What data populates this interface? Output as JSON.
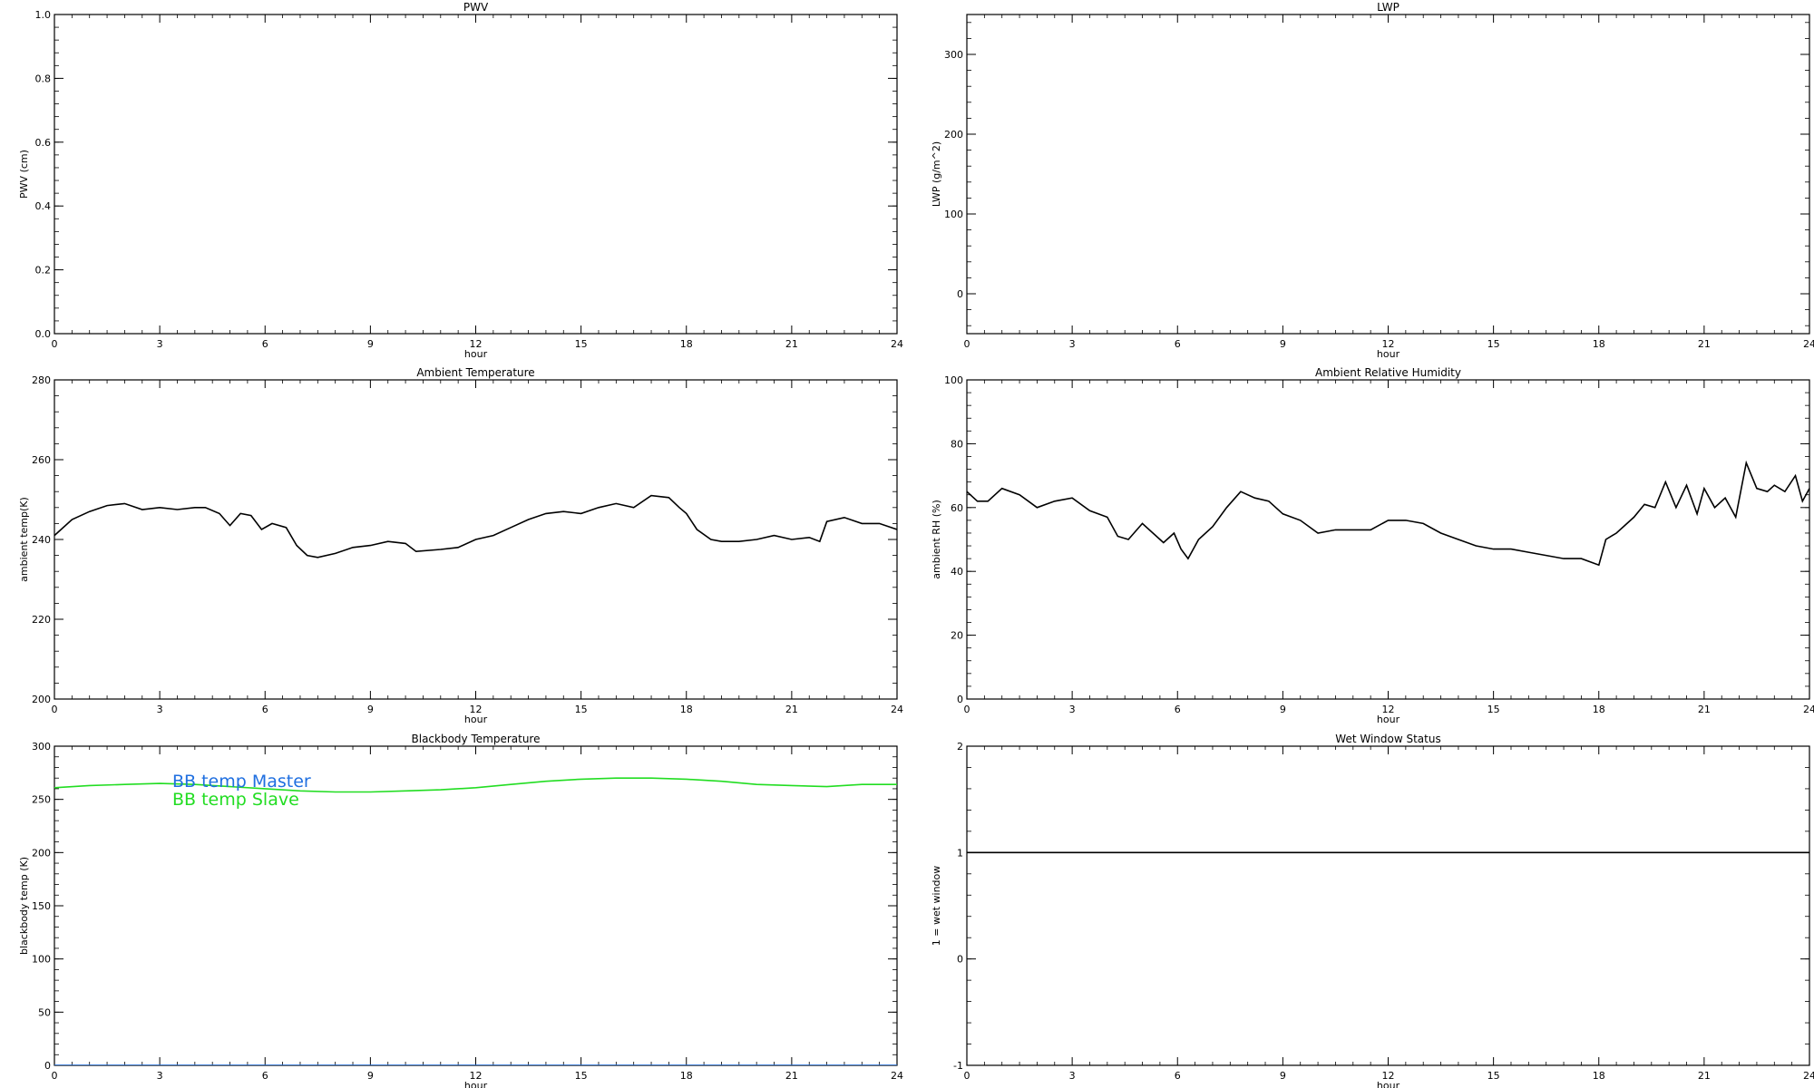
{
  "chart_data": [
    {
      "type": "line",
      "title": "PWV",
      "xlabel": "hour",
      "ylabel": "PWV (cm)",
      "xlim": [
        0,
        24
      ],
      "ylim": [
        0,
        1.0
      ],
      "xticks": [
        0,
        3,
        6,
        9,
        12,
        15,
        18,
        21,
        24
      ],
      "xtick_labels": [
        "0",
        "3",
        "6",
        "9",
        "12",
        "15",
        "18",
        "21",
        "24"
      ],
      "yticks": [
        0,
        0.2,
        0.4,
        0.6,
        0.8,
        1.0
      ],
      "ytick_labels": [
        "0.0",
        "0.2",
        "0.4",
        "0.6",
        "0.8",
        "1.0"
      ],
      "grid": false,
      "series": []
    },
    {
      "type": "line",
      "title": "LWP",
      "xlabel": "hour",
      "ylabel": "LWP (g/m^2)",
      "xlim": [
        0,
        24
      ],
      "ylim": [
        -50,
        350
      ],
      "xticks": [
        0,
        3,
        6,
        9,
        12,
        15,
        18,
        21,
        24
      ],
      "xtick_labels": [
        "0",
        "3",
        "6",
        "9",
        "12",
        "15",
        "18",
        "21",
        "24"
      ],
      "yticks": [
        0,
        100,
        200,
        300
      ],
      "ytick_labels": [
        "0",
        "100",
        "200",
        "300"
      ],
      "grid": false,
      "series": []
    },
    {
      "type": "line",
      "title": "Ambient Temperature",
      "xlabel": "hour",
      "ylabel": "ambient temp(K)",
      "xlim": [
        0,
        24
      ],
      "ylim": [
        200,
        280
      ],
      "xticks": [
        0,
        3,
        6,
        9,
        12,
        15,
        18,
        21,
        24
      ],
      "xtick_labels": [
        "0",
        "3",
        "6",
        "9",
        "12",
        "15",
        "18",
        "21",
        "24"
      ],
      "yticks": [
        200,
        220,
        240,
        260,
        280
      ],
      "ytick_labels": [
        "200",
        "220",
        "240",
        "260",
        "280"
      ],
      "grid": false,
      "series": [
        {
          "color": "#000000",
          "x": [
            0,
            0.5,
            1,
            1.5,
            2,
            2.5,
            3,
            3.5,
            4,
            4.3,
            4.7,
            5,
            5.3,
            5.6,
            5.9,
            6.2,
            6.6,
            6.9,
            7.2,
            7.5,
            8,
            8.5,
            9,
            9.5,
            10,
            10.3,
            11,
            11.5,
            12,
            12.5,
            13,
            13.5,
            14,
            14.5,
            15,
            15.5,
            16,
            16.5,
            17,
            17.5,
            17.8,
            18,
            18.3,
            18.7,
            19,
            19.5,
            20,
            20.5,
            21,
            21.5,
            21.8,
            22,
            22.5,
            23,
            23.5,
            24
          ],
          "values": [
            241,
            245,
            247,
            248.5,
            249,
            247.5,
            248,
            247.5,
            248,
            248,
            246.5,
            243.5,
            246.5,
            246,
            242.5,
            244,
            243,
            238.5,
            236,
            235.5,
            236.5,
            238,
            238.5,
            239.5,
            239,
            237,
            237.5,
            238,
            240,
            241,
            243,
            245,
            246.5,
            247,
            246.5,
            248,
            249,
            248,
            251,
            250.5,
            248,
            246.5,
            242.5,
            240,
            239.5,
            239.5,
            240,
            241,
            240,
            240.5,
            239.5,
            244.5,
            245.5,
            244,
            244,
            242.5
          ]
        }
      ]
    },
    {
      "type": "line",
      "title": "Ambient Relative Humidity",
      "xlabel": "hour",
      "ylabel": "ambient RH (%)",
      "xlim": [
        0,
        24
      ],
      "ylim": [
        0,
        100
      ],
      "xticks": [
        0,
        3,
        6,
        9,
        12,
        15,
        18,
        21,
        24
      ],
      "xtick_labels": [
        "0",
        "3",
        "6",
        "9",
        "12",
        "15",
        "18",
        "21",
        "24"
      ],
      "yticks": [
        0,
        20,
        40,
        60,
        80,
        100
      ],
      "ytick_labels": [
        "0",
        "20",
        "40",
        "60",
        "80",
        "100"
      ],
      "grid": false,
      "series": [
        {
          "color": "#000000",
          "x": [
            0,
            0.3,
            0.6,
            1,
            1.5,
            2,
            2.5,
            3,
            3.5,
            4,
            4.3,
            4.6,
            5,
            5.3,
            5.6,
            5.9,
            6.1,
            6.3,
            6.6,
            7,
            7.4,
            7.8,
            8.2,
            8.6,
            9,
            9.5,
            10,
            10.5,
            11,
            11.5,
            12,
            12.5,
            13,
            13.5,
            14,
            14.5,
            15,
            15.5,
            16,
            16.5,
            17,
            17.5,
            18,
            18.2,
            18.5,
            19,
            19.3,
            19.6,
            19.9,
            20.2,
            20.5,
            20.8,
            21,
            21.3,
            21.6,
            21.9,
            22.2,
            22.5,
            22.8,
            23,
            23.3,
            23.6,
            23.8,
            24
          ],
          "values": [
            65,
            62,
            62,
            66,
            64,
            60,
            62,
            63,
            59,
            57,
            51,
            50,
            55,
            52,
            49,
            52,
            47,
            44,
            50,
            54,
            60,
            65,
            63,
            62,
            58,
            56,
            52,
            53,
            53,
            53,
            56,
            56,
            55,
            52,
            50,
            48,
            47,
            47,
            46,
            45,
            44,
            44,
            42,
            50,
            52,
            57,
            61,
            60,
            68,
            60,
            67,
            58,
            66,
            60,
            63,
            57,
            74,
            66,
            65,
            67,
            65,
            70,
            62,
            66
          ]
        }
      ]
    },
    {
      "type": "line",
      "title": "Blackbody Temperature",
      "xlabel": "hour",
      "ylabel": "blackbody temp (K)",
      "xlim": [
        0,
        24
      ],
      "ylim": [
        0,
        300
      ],
      "xticks": [
        0,
        3,
        6,
        9,
        12,
        15,
        18,
        21,
        24
      ],
      "xtick_labels": [
        "0",
        "3",
        "6",
        "9",
        "12",
        "15",
        "18",
        "21",
        "24"
      ],
      "yticks": [
        0,
        50,
        100,
        150,
        200,
        250,
        300
      ],
      "ytick_labels": [
        "0",
        "50",
        "100",
        "150",
        "200",
        "250",
        "300"
      ],
      "grid": false,
      "legend": "top-left",
      "series": [
        {
          "name": "BB temp Master",
          "color": "#1f6fe0",
          "x": [
            0,
            3,
            6,
            9,
            12,
            15,
            18,
            21,
            24
          ],
          "values": [
            0,
            0,
            0,
            0,
            0,
            0,
            0,
            0,
            0
          ]
        },
        {
          "name": "BB temp Slave",
          "color": "#22dd22",
          "x": [
            0,
            1,
            2,
            3,
            4,
            5,
            6,
            7,
            8,
            9,
            10,
            11,
            12,
            13,
            14,
            15,
            16,
            17,
            18,
            19,
            20,
            21,
            22,
            23,
            24
          ],
          "values": [
            261,
            263,
            264,
            265,
            264,
            262,
            260,
            258,
            257,
            257,
            258,
            259,
            261,
            264,
            267,
            269,
            270,
            270,
            269,
            267,
            264,
            263,
            262,
            264,
            264
          ]
        }
      ]
    },
    {
      "type": "line",
      "title": "Wet Window Status",
      "xlabel": "hour",
      "ylabel": "1 = wet window",
      "xlim": [
        0,
        24
      ],
      "ylim": [
        -1,
        2
      ],
      "xticks": [
        0,
        3,
        6,
        9,
        12,
        15,
        18,
        21,
        24
      ],
      "xtick_labels": [
        "0",
        "3",
        "6",
        "9",
        "12",
        "15",
        "18",
        "21",
        "24"
      ],
      "yticks": [
        -1,
        0,
        1,
        2
      ],
      "ytick_labels": [
        "-1",
        "0",
        "1",
        "2"
      ],
      "grid": false,
      "series": [
        {
          "color": "#000000",
          "x": [
            0,
            24
          ],
          "values": [
            1,
            1
          ]
        }
      ]
    }
  ]
}
